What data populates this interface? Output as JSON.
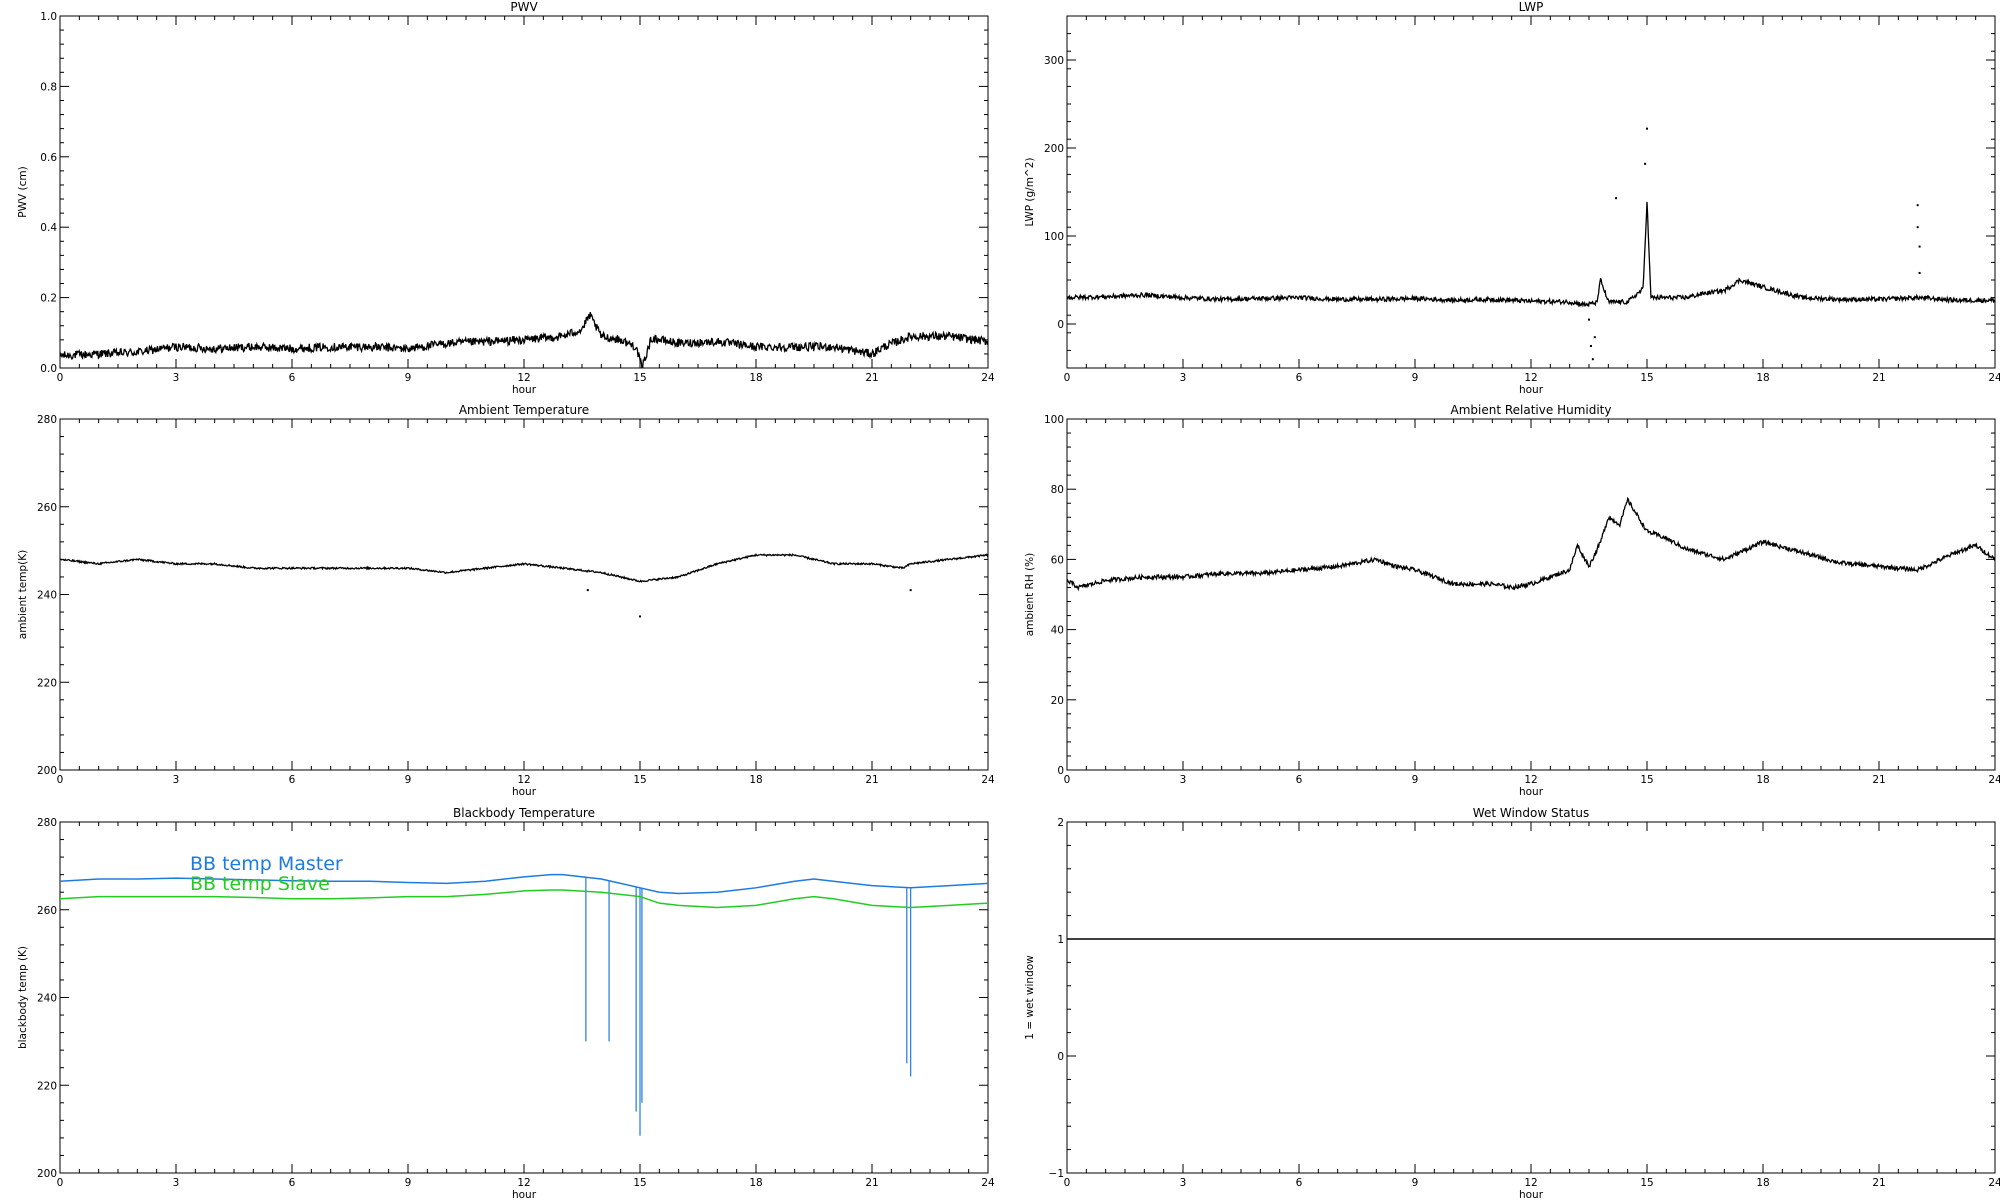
{
  "chart_data": [
    {
      "id": "pwv",
      "type": "line",
      "title": "PWV",
      "xlabel": "hour",
      "ylabel": "PWV (cm)",
      "xlim": [
        0,
        24
      ],
      "ylim": [
        0,
        1.0
      ],
      "xticks": [
        0,
        3,
        6,
        9,
        12,
        15,
        18,
        21,
        24
      ],
      "yticks": [
        0,
        0.2,
        0.4,
        0.6,
        0.8,
        1.0
      ],
      "ytick_labels": [
        "0.0",
        "0.2",
        "0.4",
        "0.6",
        "0.8",
        "1.0"
      ],
      "series": [
        {
          "color": "#000000",
          "noise": 0.012,
          "x": [
            0,
            1,
            2,
            3,
            4,
            5,
            6,
            7,
            8,
            9,
            10,
            11,
            12,
            13,
            13.5,
            13.7,
            14,
            14.5,
            14.9,
            15.05,
            15.3,
            16,
            17,
            18,
            19,
            20,
            21,
            21.3,
            22,
            23,
            24
          ],
          "y": [
            0.035,
            0.04,
            0.045,
            0.06,
            0.055,
            0.06,
            0.055,
            0.06,
            0.06,
            0.055,
            0.07,
            0.075,
            0.08,
            0.09,
            0.11,
            0.15,
            0.09,
            0.08,
            0.06,
            0.0,
            0.085,
            0.07,
            0.075,
            0.06,
            0.06,
            0.06,
            0.04,
            0.06,
            0.09,
            0.09,
            0.075
          ]
        }
      ]
    },
    {
      "id": "lwp",
      "type": "line",
      "title": "LWP",
      "xlabel": "hour",
      "ylabel": "LWP (g/m^2)",
      "xlim": [
        0,
        24
      ],
      "ylim": [
        -50,
        350
      ],
      "xticks": [
        0,
        3,
        6,
        9,
        12,
        15,
        18,
        21,
        24
      ],
      "yticks": [
        0,
        100,
        200,
        300
      ],
      "ytick_labels": [
        "0",
        "100",
        "200",
        "300"
      ],
      "series": [
        {
          "color": "#000000",
          "noise": 2.5,
          "x": [
            0,
            1,
            2,
            3,
            4,
            5,
            6,
            7,
            8,
            9,
            10,
            11,
            12,
            13,
            13.4,
            13.7,
            13.8,
            14,
            14.5,
            14.9,
            15.0,
            15.1,
            15.5,
            16,
            16.5,
            17,
            17.4,
            18,
            19,
            20,
            21,
            22,
            23,
            24
          ],
          "y": [
            30,
            31,
            33,
            30,
            28,
            29,
            30,
            28,
            28,
            29,
            27,
            28,
            26,
            25,
            22,
            24,
            50,
            25,
            25,
            40,
            140,
            30,
            30,
            30,
            35,
            38,
            50,
            42,
            30,
            28,
            28,
            30,
            27,
            27
          ]
        }
      ],
      "scatter": [
        {
          "x": 13.5,
          "y": 5
        },
        {
          "x": 13.55,
          "y": -25
        },
        {
          "x": 13.6,
          "y": -40
        },
        {
          "x": 13.65,
          "y": -15
        },
        {
          "x": 14.2,
          "y": 143
        },
        {
          "x": 14.95,
          "y": 182
        },
        {
          "x": 15.0,
          "y": 222
        },
        {
          "x": 22.0,
          "y": 135
        },
        {
          "x": 22.0,
          "y": 110
        },
        {
          "x": 22.05,
          "y": 88
        },
        {
          "x": 22.05,
          "y": 58
        }
      ]
    },
    {
      "id": "ambient_temp",
      "type": "line",
      "title": "Ambient Temperature",
      "xlabel": "hour",
      "ylabel": "ambient temp(K)",
      "xlim": [
        0,
        24
      ],
      "ylim": [
        200,
        280
      ],
      "xticks": [
        0,
        3,
        6,
        9,
        12,
        15,
        18,
        21,
        24
      ],
      "yticks": [
        200,
        220,
        240,
        260,
        280
      ],
      "ytick_labels": [
        "200",
        "220",
        "240",
        "260",
        "280"
      ],
      "series": [
        {
          "color": "#000000",
          "noise": 0.2,
          "x": [
            0,
            1,
            2,
            3,
            4,
            5,
            6,
            7,
            8,
            9,
            10,
            11,
            12,
            13,
            14,
            15,
            16,
            17,
            18,
            19,
            20,
            21,
            21.8,
            22,
            23,
            24
          ],
          "y": [
            248,
            247,
            248,
            247,
            247,
            246,
            246,
            246,
            246,
            246,
            245,
            246,
            247,
            246,
            245,
            243,
            244,
            247,
            249,
            249,
            247,
            247,
            246,
            247,
            248,
            249
          ]
        }
      ],
      "scatter": [
        {
          "x": 13.65,
          "y": 241
        },
        {
          "x": 15.0,
          "y": 235
        },
        {
          "x": 22.0,
          "y": 241
        }
      ]
    },
    {
      "id": "ambient_rh",
      "type": "line",
      "title": "Ambient Relative Humidity",
      "xlabel": "hour",
      "ylabel": "ambient RH (%)",
      "xlim": [
        0,
        24
      ],
      "ylim": [
        0,
        100
      ],
      "xticks": [
        0,
        3,
        6,
        9,
        12,
        15,
        18,
        21,
        24
      ],
      "yticks": [
        0,
        20,
        40,
        60,
        80,
        100
      ],
      "ytick_labels": [
        "0",
        "20",
        "40",
        "60",
        "80",
        "100"
      ],
      "series": [
        {
          "color": "#000000",
          "noise": 0.6,
          "x": [
            0,
            0.3,
            1,
            2,
            3,
            4,
            5,
            6,
            7,
            8,
            8.5,
            9,
            10,
            11,
            11.5,
            12,
            12.5,
            13,
            13.2,
            13.5,
            13.8,
            14,
            14.3,
            14.5,
            15,
            15.5,
            16,
            17,
            18,
            19,
            20,
            21,
            22,
            23,
            23.5,
            24
          ],
          "y": [
            54,
            52,
            54,
            55,
            55,
            56,
            56,
            57,
            58,
            60,
            58,
            57,
            53,
            53,
            52,
            53,
            55,
            57,
            64,
            58,
            65,
            72,
            70,
            77,
            68,
            66,
            63,
            60,
            65,
            62,
            59,
            58,
            57,
            62,
            64,
            60
          ]
        }
      ]
    },
    {
      "id": "bb_temp",
      "type": "line",
      "title": "Blackbody Temperature",
      "xlabel": "hour",
      "ylabel": "blackbody temp (K)",
      "xlim": [
        0,
        24
      ],
      "ylim": [
        200,
        280
      ],
      "xticks": [
        0,
        3,
        6,
        9,
        12,
        15,
        18,
        21,
        24
      ],
      "yticks": [
        200,
        220,
        240,
        260,
        280
      ],
      "ytick_labels": [
        "200",
        "220",
        "240",
        "260",
        "280"
      ],
      "legend": [
        "BB temp Master",
        "BB temp Slave"
      ],
      "series": [
        {
          "name": "BB temp Master",
          "color": "#1e7be0",
          "noise": 0,
          "x": [
            0,
            1,
            2,
            3,
            4,
            5,
            6,
            7,
            8,
            9,
            10,
            11,
            12,
            12.7,
            13,
            14,
            15,
            15.5,
            16,
            17,
            18,
            19,
            19.5,
            20,
            21,
            22,
            23,
            24
          ],
          "y": [
            266.5,
            267,
            267,
            267.2,
            267,
            266.8,
            266.6,
            266.5,
            266.5,
            266.2,
            266,
            266.5,
            267.5,
            268,
            268,
            267,
            265,
            264,
            263.7,
            264,
            265,
            266.5,
            267,
            266.5,
            265.5,
            265,
            265.5,
            266
          ]
        },
        {
          "name": "BB temp Slave",
          "color": "#22cc22",
          "noise": 0,
          "x": [
            0,
            1,
            2,
            3,
            4,
            5,
            6,
            7,
            8,
            9,
            10,
            11,
            12,
            12.7,
            13,
            14,
            15,
            15.5,
            16,
            17,
            18,
            19,
            19.5,
            20,
            21,
            22,
            23,
            24
          ],
          "y": [
            262.5,
            263,
            263,
            263,
            263,
            262.8,
            262.5,
            262.5,
            262.7,
            263,
            263,
            263.5,
            264.3,
            264.5,
            264.5,
            264,
            263,
            261.5,
            261,
            260.5,
            261,
            262.5,
            263,
            262.5,
            261,
            260.5,
            261,
            261.5
          ]
        }
      ],
      "spikes": [
        {
          "x": 13.6,
          "to": 230
        },
        {
          "x": 14.2,
          "to": 230
        },
        {
          "x": 14.9,
          "to": 214
        },
        {
          "x": 15.0,
          "to": 208.5
        },
        {
          "x": 15.05,
          "to": 216
        },
        {
          "x": 21.9,
          "to": 225
        },
        {
          "x": 22.0,
          "to": 222
        }
      ]
    },
    {
      "id": "wet_window",
      "type": "line",
      "title": "Wet Window Status",
      "xlabel": "hour",
      "ylabel": "1 = wet window",
      "xlim": [
        0,
        24
      ],
      "ylim": [
        -1,
        2
      ],
      "xticks": [
        0,
        3,
        6,
        9,
        12,
        15,
        18,
        21,
        24
      ],
      "yticks": [
        -1,
        0,
        1,
        2
      ],
      "ytick_labels": [
        "−1",
        "0",
        "1",
        "2"
      ],
      "series": [
        {
          "color": "#000000",
          "noise": 0,
          "x": [
            0,
            24
          ],
          "y": [
            1,
            1
          ]
        }
      ]
    }
  ]
}
